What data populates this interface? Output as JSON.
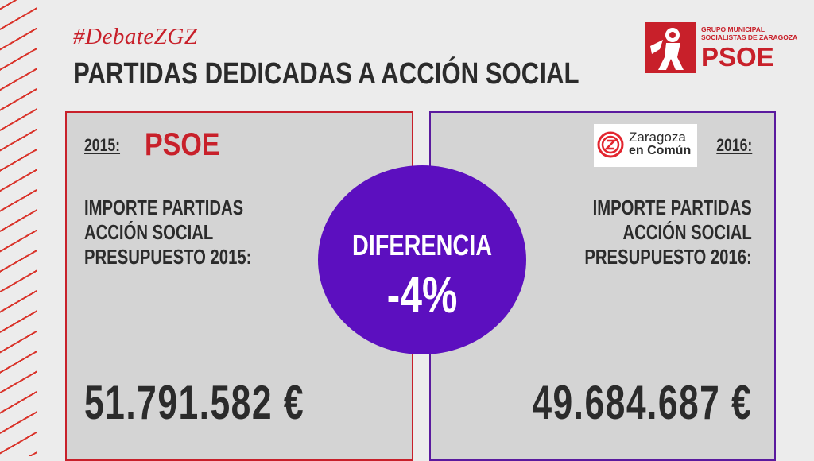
{
  "header": {
    "hashtag": "#DebateZGZ",
    "title": "PARTIDAS DEDICADAS A ACCIÓN SOCIAL"
  },
  "logo_psoe": {
    "line1": "GRUPO MUNICIPAL",
    "line2": "SOCIALISTAS DE ZARAGOZA",
    "word": "PSOE"
  },
  "left_panel": {
    "year": "2015:",
    "party": "PSOE",
    "label_lines": [
      "IMPORTE PARTIDAS",
      "ACCIÓN SOCIAL",
      "PRESUPUESTO 2015:"
    ],
    "amount": "51.791.582 €"
  },
  "right_panel": {
    "logo_line1": "Zaragoza",
    "logo_line2": "en Común",
    "year": "2016:",
    "label_lines": [
      "IMPORTE PARTIDAS",
      "ACCIÓN SOCIAL",
      "PRESUPUESTO 2016:"
    ],
    "amount": "49.684.687 €"
  },
  "difference": {
    "label": "DIFERENCIA",
    "value": "-4%"
  },
  "colors": {
    "psoe_red": "#c8202a",
    "purple": "#5c0fbf",
    "panel_gray": "#d4d4d4",
    "background": "#ececec"
  },
  "icons": [
    "psoe-rose-logo",
    "zaragoza-en-comun-logo"
  ]
}
